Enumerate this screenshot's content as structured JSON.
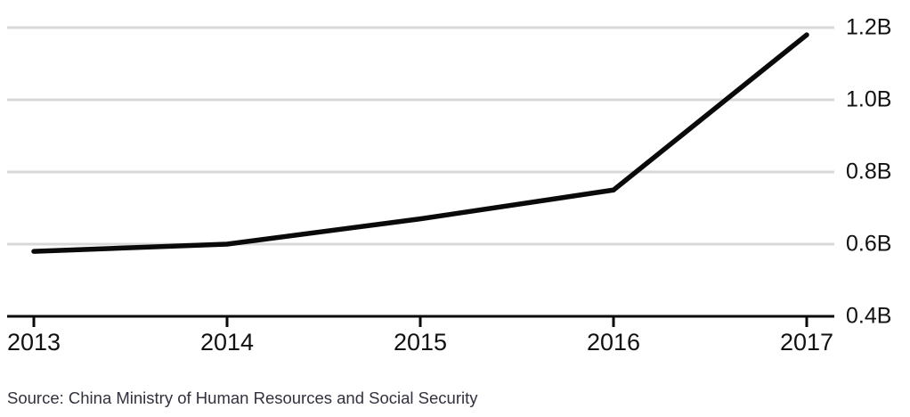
{
  "chart_data": {
    "type": "line",
    "categories": [
      "2013",
      "2014",
      "2015",
      "2016",
      "2017"
    ],
    "values": [
      0.58,
      0.6,
      0.67,
      0.75,
      1.18
    ],
    "title": "",
    "xlabel": "",
    "ylabel": "",
    "ylim": [
      0.4,
      1.2
    ],
    "yticks": [
      0.4,
      0.6,
      0.8,
      1.0,
      1.2
    ],
    "ytick_labels": [
      "0.4B",
      "0.6B",
      "0.8B",
      "1.0B",
      "1.2B"
    ],
    "grid": "horizontal",
    "legend": "none",
    "ytick_side": "right",
    "line_color": "#0a0a0a",
    "grid_color": "#d8d8d8",
    "axis_color": "#0a0a0a",
    "label_color": "#111111"
  },
  "source": {
    "text": "Source: China Ministry of Human Resources and Social Security"
  }
}
